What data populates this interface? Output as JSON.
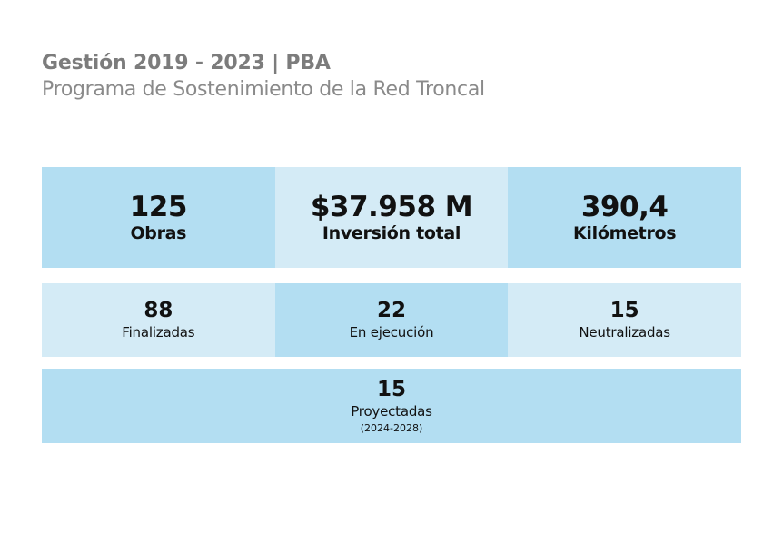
{
  "header": {
    "title": "Gestión 2019 - 2023 | PBA",
    "subtitle": "Programa de Sostenimiento de la Red Troncal"
  },
  "summary": [
    {
      "value": "125",
      "label": "Obras"
    },
    {
      "value": "$37.958 M",
      "label": "Inversión total"
    },
    {
      "value": "390,4",
      "label": "Kilómetros"
    }
  ],
  "status": [
    {
      "value": "88",
      "label": "Finalizadas"
    },
    {
      "value": "22",
      "label": "En ejecución"
    },
    {
      "value": "15",
      "label": "Neutralizadas"
    }
  ],
  "projected": {
    "value": "15",
    "label": "Proyectadas",
    "note": "(2024-2028)"
  },
  "colors": {
    "cell_dark": "#b3def2",
    "cell_light": "#d4ebf6",
    "title_gray": "#7c7c7c"
  }
}
